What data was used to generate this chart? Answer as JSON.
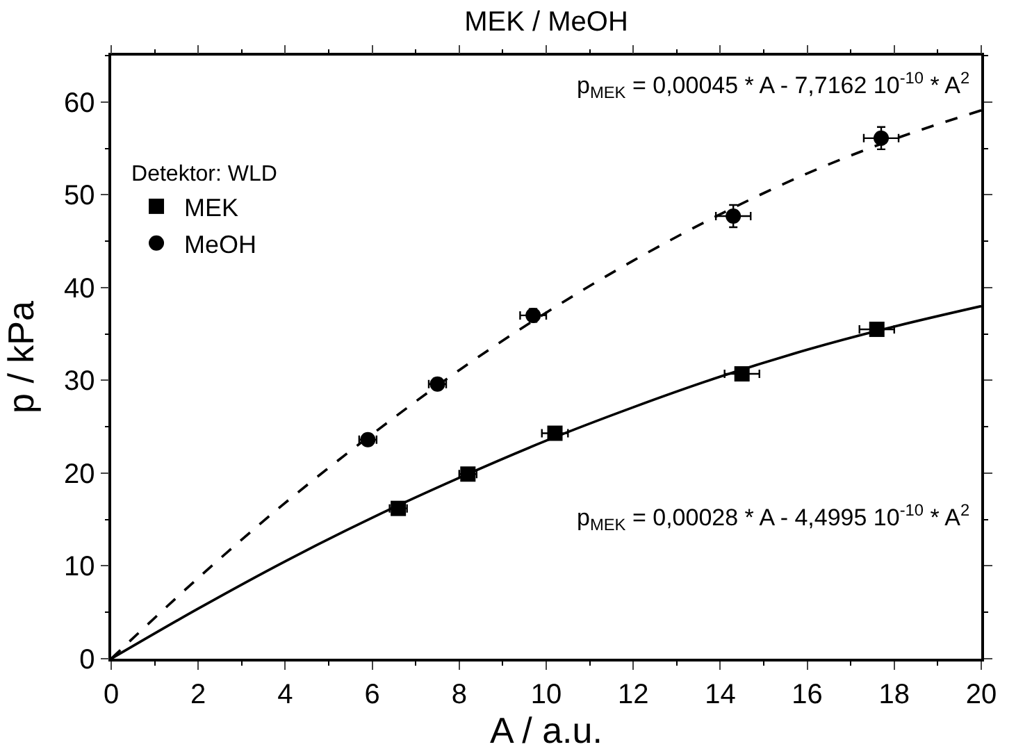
{
  "chart_data": {
    "type": "scatter",
    "title": "MEK / MeOH",
    "xlabel": "A / a.u.",
    "ylabel": "p / kPa",
    "legend_title": "Detektor: WLD",
    "xlim": [
      0,
      20
    ],
    "xticks": [
      0,
      2,
      4,
      6,
      8,
      10,
      12,
      14,
      16,
      18,
      20
    ],
    "ylim": [
      0,
      65
    ],
    "yticks": [
      0,
      10,
      20,
      30,
      40,
      50,
      60
    ],
    "legend": "top left",
    "annotations": [
      "p$_{MEK}$ = 0,00045 * A - 7,7162 10$^{-10}$ * A$^{2}$",
      "p$_{MEK}$ = 0,00028 * A - 4,4995 10$^{-10}$ * A$^{2}$"
    ],
    "series": [
      {
        "name": "MEK",
        "marker": "square",
        "color": "#000000",
        "x": [
          6.6,
          8.2,
          10.2,
          14.5,
          17.6
        ],
        "values": [
          16.2,
          19.9,
          24.3,
          30.7,
          35.5
        ],
        "xerrors": [
          0.2,
          0.2,
          0.3,
          0.4,
          0.4
        ]
      },
      {
        "name": "MeOH",
        "marker": "circle",
        "color": "#000000",
        "x": [
          5.9,
          7.5,
          9.7,
          14.3,
          17.7
        ],
        "values": [
          23.6,
          29.6,
          37.0,
          47.7,
          56.1
        ],
        "errors": [
          null,
          0.6,
          0.7,
          1.2,
          1.2
        ],
        "xerrors": [
          0.2,
          0.2,
          0.3,
          0.4,
          0.4
        ]
      },
      {
        "type": "line",
        "line_style": "solid",
        "color": "#000000",
        "x": [
          0,
          2,
          4,
          6,
          8,
          10,
          12,
          14,
          16,
          18,
          20
        ],
        "values": [
          0,
          5.4,
          10.5,
          15.2,
          19.5,
          23.5,
          27.1,
          30.4,
          33.3,
          35.8,
          38.0
        ]
      },
      {
        "type": "line",
        "line_style": "dashed",
        "color": "#000000",
        "x": [
          0,
          2,
          4,
          6,
          8,
          10,
          12,
          14,
          16,
          18,
          20
        ],
        "values": [
          0,
          8.7,
          16.8,
          24.2,
          31.1,
          37.3,
          42.9,
          47.9,
          52.3,
          56.0,
          59.1
        ]
      }
    ]
  }
}
